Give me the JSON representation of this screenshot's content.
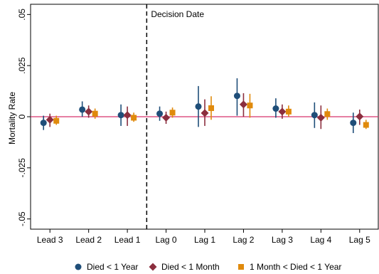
{
  "chart_data": {
    "type": "scatter",
    "subtype": "coefficient-plot-with-confidence-intervals",
    "ylabel": "Mortality Rate",
    "xlabel": "",
    "ylim": [
      -0.055,
      0.055
    ],
    "yticks": [
      -0.05,
      -0.025,
      0,
      0.025,
      0.05
    ],
    "ytick_labels": [
      "-.05",
      "-.025",
      "0",
      ".025",
      ".05"
    ],
    "categories": [
      "Lead 3",
      "Lead 2",
      "Lead 1",
      "Lag 0",
      "Lag 1",
      "Lag 2",
      "Lag 3",
      "Lag 4",
      "Lag 5"
    ],
    "reference_line": {
      "y": 0,
      "color": "#d6336c"
    },
    "event_line": {
      "after_category": "Lead 1",
      "label": "Decision Date"
    },
    "grid": false,
    "legend_position": "bottom",
    "series": [
      {
        "name": "Died < 1 Year",
        "marker": "circle",
        "color": "#1f4e79",
        "values": [
          -0.003,
          0.0035,
          0.0008,
          0.0015,
          0.005,
          0.0102,
          0.004,
          0.0008,
          -0.003
        ],
        "ci_low": [
          -0.0065,
          0.0,
          -0.0045,
          -0.002,
          -0.005,
          0.0005,
          -0.0005,
          -0.0055,
          -0.008
        ],
        "ci_high": [
          0.0005,
          0.0075,
          0.006,
          0.005,
          0.015,
          0.0188,
          0.009,
          0.007,
          0.002
        ]
      },
      {
        "name": "Died < 1 Month",
        "marker": "diamond",
        "color": "#8b2e3e",
        "values": [
          -0.0015,
          0.0025,
          0.0008,
          -0.0005,
          0.0018,
          0.006,
          0.0025,
          -0.0005,
          0.0001
        ],
        "ci_low": [
          -0.005,
          -0.0005,
          -0.0045,
          -0.0035,
          -0.0045,
          0.0,
          -0.001,
          -0.006,
          -0.004
        ],
        "ci_high": [
          0.0015,
          0.0055,
          0.005,
          0.0025,
          0.0085,
          0.0115,
          0.006,
          0.0055,
          0.0035
        ]
      },
      {
        "name": "1 Month < Died < 1 Year",
        "marker": "square",
        "color": "#e08a0c",
        "values": [
          -0.002,
          0.0015,
          -0.0005,
          0.002,
          0.0042,
          0.0055,
          0.0025,
          0.0013,
          -0.004
        ],
        "ci_low": [
          -0.004,
          -0.001,
          -0.0025,
          -0.0005,
          -0.0015,
          -0.0005,
          0.0,
          -0.0015,
          -0.006
        ],
        "ci_high": [
          0.0005,
          0.004,
          0.002,
          0.0045,
          0.01,
          0.0112,
          0.0055,
          0.004,
          -0.0015
        ]
      }
    ]
  }
}
